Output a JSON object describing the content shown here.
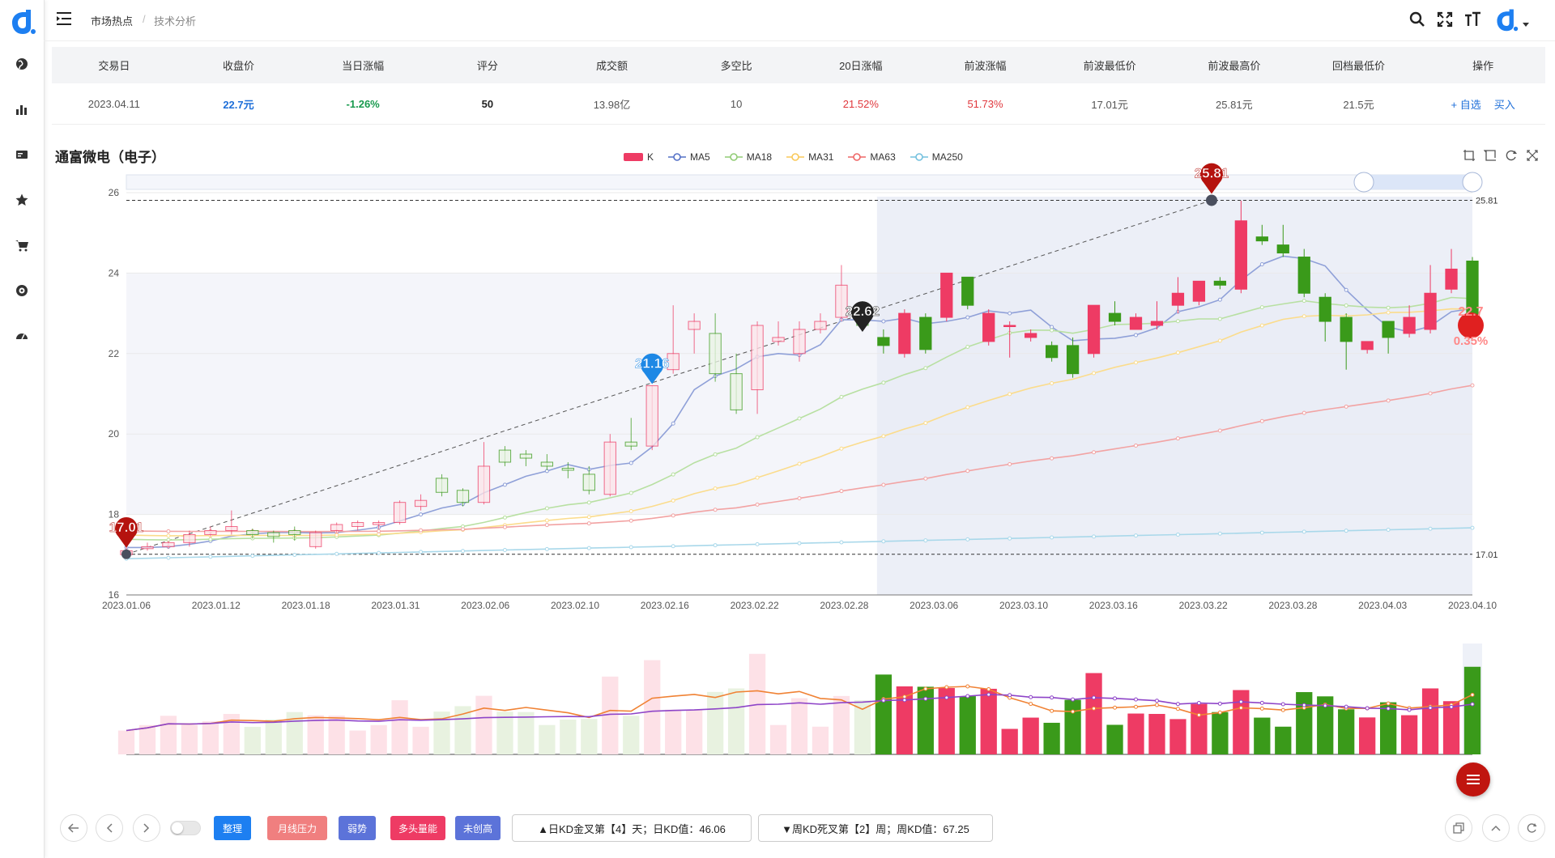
{
  "breadcrumb": {
    "root": "市场热点",
    "separator": "/",
    "current": "技术分析"
  },
  "sidebar": {
    "items": [
      {
        "name": "globe-icon"
      },
      {
        "name": "bar-chart-icon"
      },
      {
        "name": "card-icon"
      },
      {
        "name": "star-icon"
      },
      {
        "name": "cart-icon"
      },
      {
        "name": "target-icon"
      },
      {
        "name": "dashboard-icon"
      }
    ]
  },
  "topbar_icons": [
    "search-icon",
    "fullscreen-icon",
    "font-size-icon",
    "logo-icon"
  ],
  "summary": {
    "headers": [
      "交易日",
      "收盘价",
      "当日涨幅",
      "评分",
      "成交额",
      "多空比",
      "20日涨幅",
      "前波涨幅",
      "前波最低价",
      "前波最高价",
      "回档最低价",
      "操作"
    ],
    "values": [
      "2023.04.11",
      "22.7元",
      "-1.26%",
      "50",
      "13.98亿",
      "10",
      "21.52%",
      "51.73%",
      "17.01元",
      "25.81元",
      "21.5元",
      ""
    ],
    "actions": {
      "watch": "+ 自选",
      "buy": "买入"
    }
  },
  "stock_title": "通富微电（电子）",
  "legend": [
    {
      "label": "K",
      "color": "#ee3b64"
    },
    {
      "label": "MA5",
      "color": "#5470c6"
    },
    {
      "label": "MA18",
      "color": "#91cc75"
    },
    {
      "label": "MA31",
      "color": "#fac858"
    },
    {
      "label": "MA63",
      "color": "#ee6666"
    },
    {
      "label": "MA250",
      "color": "#73c0de"
    }
  ],
  "chart_data": {
    "type": "candlestick",
    "dates": [
      "2023.01.06",
      "2023.01.12",
      "2023.01.18",
      "2023.01.31",
      "2023.02.06",
      "2023.02.10",
      "2023.02.16",
      "2023.02.22",
      "2023.02.28",
      "2023.03.06",
      "2023.03.10",
      "2023.03.16",
      "2023.03.22",
      "2023.03.28",
      "2023.04.03",
      "2023.04.10"
    ],
    "y_ticks": [
      16,
      18,
      20,
      22,
      24,
      26
    ],
    "ylim": [
      16,
      26
    ],
    "markers": {
      "low": {
        "label": "17.01",
        "value": 17.01
      },
      "high": {
        "label": "25.81",
        "value": 25.81
      },
      "mid1": {
        "label": "21.16",
        "value": 21.16
      },
      "mid2": {
        "label": "22.62",
        "value": 22.62
      },
      "last": {
        "label": "22.7",
        "value": 22.7
      },
      "last_pct": "0.35%"
    },
    "ref_lines": [
      {
        "label": "25.81",
        "value": 25.81
      },
      {
        "label": "17.01",
        "value": 17.01
      }
    ],
    "candles": [
      [
        17.0,
        17.1,
        16.9,
        17.2
      ],
      [
        17.15,
        17.2,
        17.1,
        17.3
      ],
      [
        17.2,
        17.3,
        17.15,
        17.35
      ],
      [
        17.3,
        17.5,
        17.2,
        17.6
      ],
      [
        17.5,
        17.6,
        17.45,
        17.7
      ],
      [
        17.6,
        17.7,
        17.5,
        18.1
      ],
      [
        17.6,
        17.5,
        17.4,
        17.65
      ],
      [
        17.55,
        17.45,
        17.3,
        17.6
      ],
      [
        17.6,
        17.5,
        17.35,
        17.7
      ],
      [
        17.2,
        17.55,
        17.15,
        17.6
      ],
      [
        17.6,
        17.75,
        17.55,
        17.8
      ],
      [
        17.7,
        17.8,
        17.6,
        17.85
      ],
      [
        17.75,
        17.8,
        17.65,
        17.85
      ],
      [
        17.8,
        18.3,
        17.75,
        18.35
      ],
      [
        18.2,
        18.35,
        18.1,
        18.5
      ],
      [
        18.9,
        18.55,
        18.45,
        19.0
      ],
      [
        18.6,
        18.3,
        18.2,
        18.65
      ],
      [
        18.3,
        19.2,
        18.25,
        19.8
      ],
      [
        19.6,
        19.3,
        19.2,
        19.7
      ],
      [
        19.5,
        19.4,
        19.2,
        19.6
      ],
      [
        19.3,
        19.2,
        19.1,
        19.5
      ],
      [
        19.15,
        19.1,
        18.9,
        19.3
      ],
      [
        19.0,
        18.6,
        18.5,
        19.2
      ],
      [
        18.5,
        19.8,
        18.45,
        20.0
      ],
      [
        19.8,
        19.7,
        19.6,
        20.4
      ],
      [
        19.7,
        21.2,
        19.6,
        21.2
      ],
      [
        21.6,
        22.0,
        21.5,
        23.2
      ],
      [
        22.6,
        22.8,
        22.0,
        23.0
      ],
      [
        22.5,
        21.5,
        21.3,
        23.0
      ],
      [
        21.5,
        20.6,
        20.5,
        22.0
      ],
      [
        21.1,
        22.7,
        20.5,
        22.8
      ],
      [
        22.3,
        22.4,
        22.2,
        22.8
      ],
      [
        22.0,
        22.6,
        21.8,
        22.8
      ],
      [
        22.6,
        22.8,
        22.5,
        23.0
      ],
      [
        22.9,
        23.7,
        22.8,
        24.2
      ],
      [
        23.2,
        22.7,
        22.6,
        23.3
      ],
      [
        22.4,
        22.2,
        22.0,
        22.6
      ],
      [
        22.0,
        23.0,
        21.9,
        23.1
      ],
      [
        22.9,
        22.1,
        22.0,
        23.0
      ],
      [
        22.9,
        24.0,
        22.8,
        24.0
      ],
      [
        23.9,
        23.2,
        23.1,
        23.9
      ],
      [
        22.3,
        23.0,
        22.2,
        23.1
      ],
      [
        22.7,
        22.7,
        21.9,
        22.8
      ],
      [
        22.4,
        22.5,
        22.3,
        22.6
      ],
      [
        22.2,
        21.9,
        21.8,
        22.3
      ],
      [
        22.2,
        21.5,
        21.4,
        22.4
      ],
      [
        22.0,
        23.2,
        21.9,
        23.2
      ],
      [
        23.0,
        22.8,
        22.7,
        23.3
      ],
      [
        22.6,
        22.9,
        22.6,
        23.0
      ],
      [
        22.7,
        22.8,
        22.6,
        23.3
      ],
      [
        23.2,
        23.5,
        23.0,
        23.9
      ],
      [
        23.3,
        23.8,
        23.2,
        23.8
      ],
      [
        23.8,
        23.7,
        23.6,
        23.9
      ],
      [
        23.6,
        25.3,
        23.5,
        25.8
      ],
      [
        24.9,
        24.8,
        24.7,
        25.2
      ],
      [
        24.7,
        24.5,
        24.4,
        25.2
      ],
      [
        24.4,
        23.5,
        23.4,
        24.6
      ],
      [
        23.4,
        22.8,
        22.3,
        23.5
      ],
      [
        22.9,
        22.3,
        21.6,
        23.0
      ],
      [
        22.1,
        22.3,
        22.0,
        22.3
      ],
      [
        22.8,
        22.4,
        22.0,
        22.8
      ],
      [
        22.5,
        22.9,
        22.4,
        23.2
      ],
      [
        22.6,
        23.5,
        22.5,
        24.2
      ],
      [
        23.6,
        24.1,
        23.5,
        24.6
      ],
      [
        24.3,
        22.7,
        22.5,
        24.4
      ]
    ]
  },
  "volume_data": {
    "type": "bar",
    "note": ""
  },
  "bottom": {
    "tags": [
      {
        "label": "整理",
        "color": "#1d7ff1"
      },
      {
        "label": "月线压力",
        "color": "#f07f7f"
      },
      {
        "label": "弱势",
        "color": "#5c73d9"
      },
      {
        "label": "多头量能",
        "color": "#ee3b64"
      },
      {
        "label": "未创高",
        "color": "#5c73d9"
      }
    ],
    "info1": "▲日KD金叉第【4】天；日KD值：46.06",
    "info2": "▼周KD死叉第【2】周；周KD值：67.25"
  },
  "colors": {
    "up": "#ee3b64",
    "down": "#3a9a1a",
    "accent": "#1e6fd9"
  }
}
